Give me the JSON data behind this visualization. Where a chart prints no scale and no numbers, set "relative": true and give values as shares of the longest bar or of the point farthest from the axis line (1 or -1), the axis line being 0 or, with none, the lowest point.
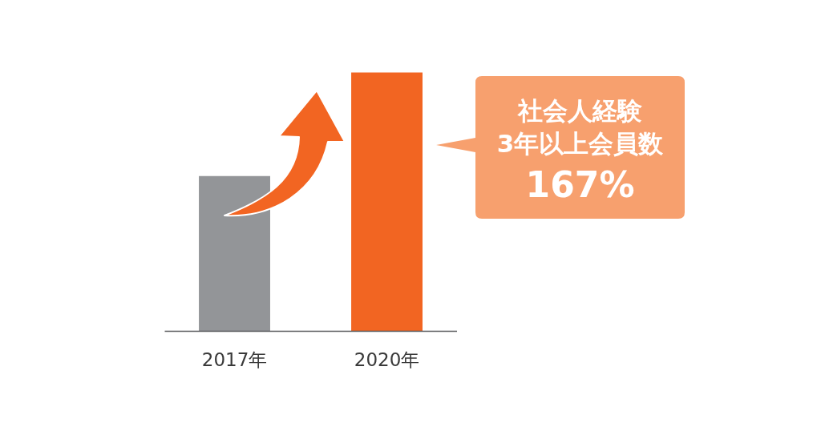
{
  "chart_data": {
    "type": "bar",
    "relative": true,
    "categories": [
      "2017年",
      "2020年"
    ],
    "values": [
      0.6,
      1
    ],
    "colors": [
      "#939598",
      "#f26522"
    ],
    "annotations": [
      "社会人経験\n3年以上会員数",
      "167%"
    ]
  }
}
